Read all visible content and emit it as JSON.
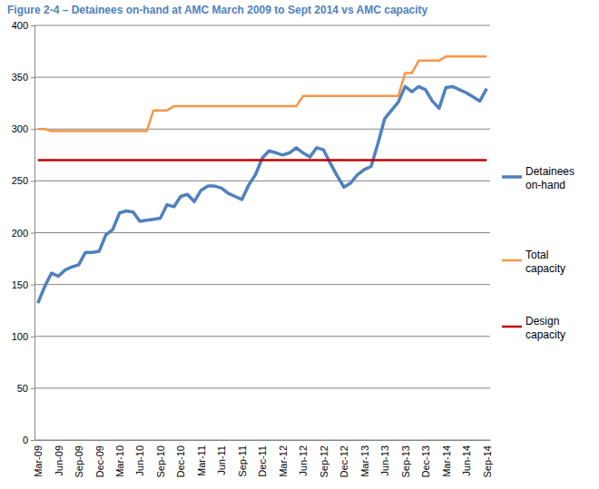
{
  "chart_data": {
    "type": "line",
    "title": "Figure 2-4 – Detainees on-hand at AMC March 2009 to Sept 2014 vs AMC capacity",
    "categories": [
      "Mar-09",
      null,
      null,
      "Jun-09",
      null,
      null,
      "Sep-09",
      null,
      null,
      "Dec-09",
      null,
      null,
      "Mar-10",
      null,
      null,
      "Jun-10",
      null,
      null,
      "Sep-10",
      null,
      null,
      "Dec-10",
      null,
      null,
      "Mar-11",
      null,
      null,
      "Jun-11",
      null,
      null,
      "Sep-11",
      null,
      null,
      "Dec-11",
      null,
      null,
      "Mar-12",
      null,
      null,
      "Jun-12",
      null,
      null,
      "Sep-12",
      null,
      null,
      "Dec-12",
      null,
      null,
      "Mar-13",
      null,
      null,
      "Jun-13",
      null,
      null,
      "Sep-13",
      null,
      null,
      "Dec-13",
      null,
      null,
      "Mar-14",
      null,
      null,
      "Jun-14",
      null,
      null,
      "Sep-14"
    ],
    "series": [
      {
        "name": "Detainees on-hand",
        "color": "#4f81bd",
        "values": [
          132,
          148,
          161,
          158,
          164,
          167,
          169,
          181,
          181,
          182,
          198,
          203,
          219,
          221,
          220,
          211,
          212,
          213,
          214,
          227,
          225,
          235,
          237,
          230,
          241,
          245,
          245,
          243,
          238,
          235,
          232,
          246,
          256,
          272,
          279,
          277,
          275,
          277,
          282,
          277,
          273,
          282,
          280,
          267,
          255,
          244,
          248,
          256,
          261,
          264,
          286,
          310,
          318,
          326,
          341,
          336,
          341,
          338,
          327,
          320,
          340,
          341,
          338,
          335,
          331,
          327,
          339
        ]
      },
      {
        "name": "Total capacity",
        "color": "#f79646",
        "values": [
          300,
          300,
          298,
          298,
          298,
          298,
          298,
          298,
          298,
          298,
          298,
          298,
          298,
          298,
          298,
          298,
          298,
          318,
          318,
          318,
          322,
          322,
          322,
          322,
          322,
          322,
          322,
          322,
          322,
          322,
          322,
          322,
          322,
          322,
          322,
          322,
          322,
          322,
          322,
          332,
          332,
          332,
          332,
          332,
          332,
          332,
          332,
          332,
          332,
          332,
          332,
          332,
          332,
          332,
          354,
          354,
          366,
          366,
          366,
          366,
          370,
          370,
          370,
          370,
          370,
          370,
          370
        ]
      },
      {
        "name": "Design capacity",
        "color": "#c00000",
        "values": [
          270,
          270,
          270,
          270,
          270,
          270,
          270,
          270,
          270,
          270,
          270,
          270,
          270,
          270,
          270,
          270,
          270,
          270,
          270,
          270,
          270,
          270,
          270,
          270,
          270,
          270,
          270,
          270,
          270,
          270,
          270,
          270,
          270,
          270,
          270,
          270,
          270,
          270,
          270,
          270,
          270,
          270,
          270,
          270,
          270,
          270,
          270,
          270,
          270,
          270,
          270,
          270,
          270,
          270,
          270,
          270,
          270,
          270,
          270,
          270,
          270,
          270,
          270,
          270,
          270,
          270,
          270
        ]
      }
    ],
    "ylim": [
      0,
      400
    ],
    "yticks": [
      0,
      50,
      100,
      150,
      200,
      250,
      300,
      350,
      400
    ],
    "grid": true,
    "legend": "right"
  }
}
